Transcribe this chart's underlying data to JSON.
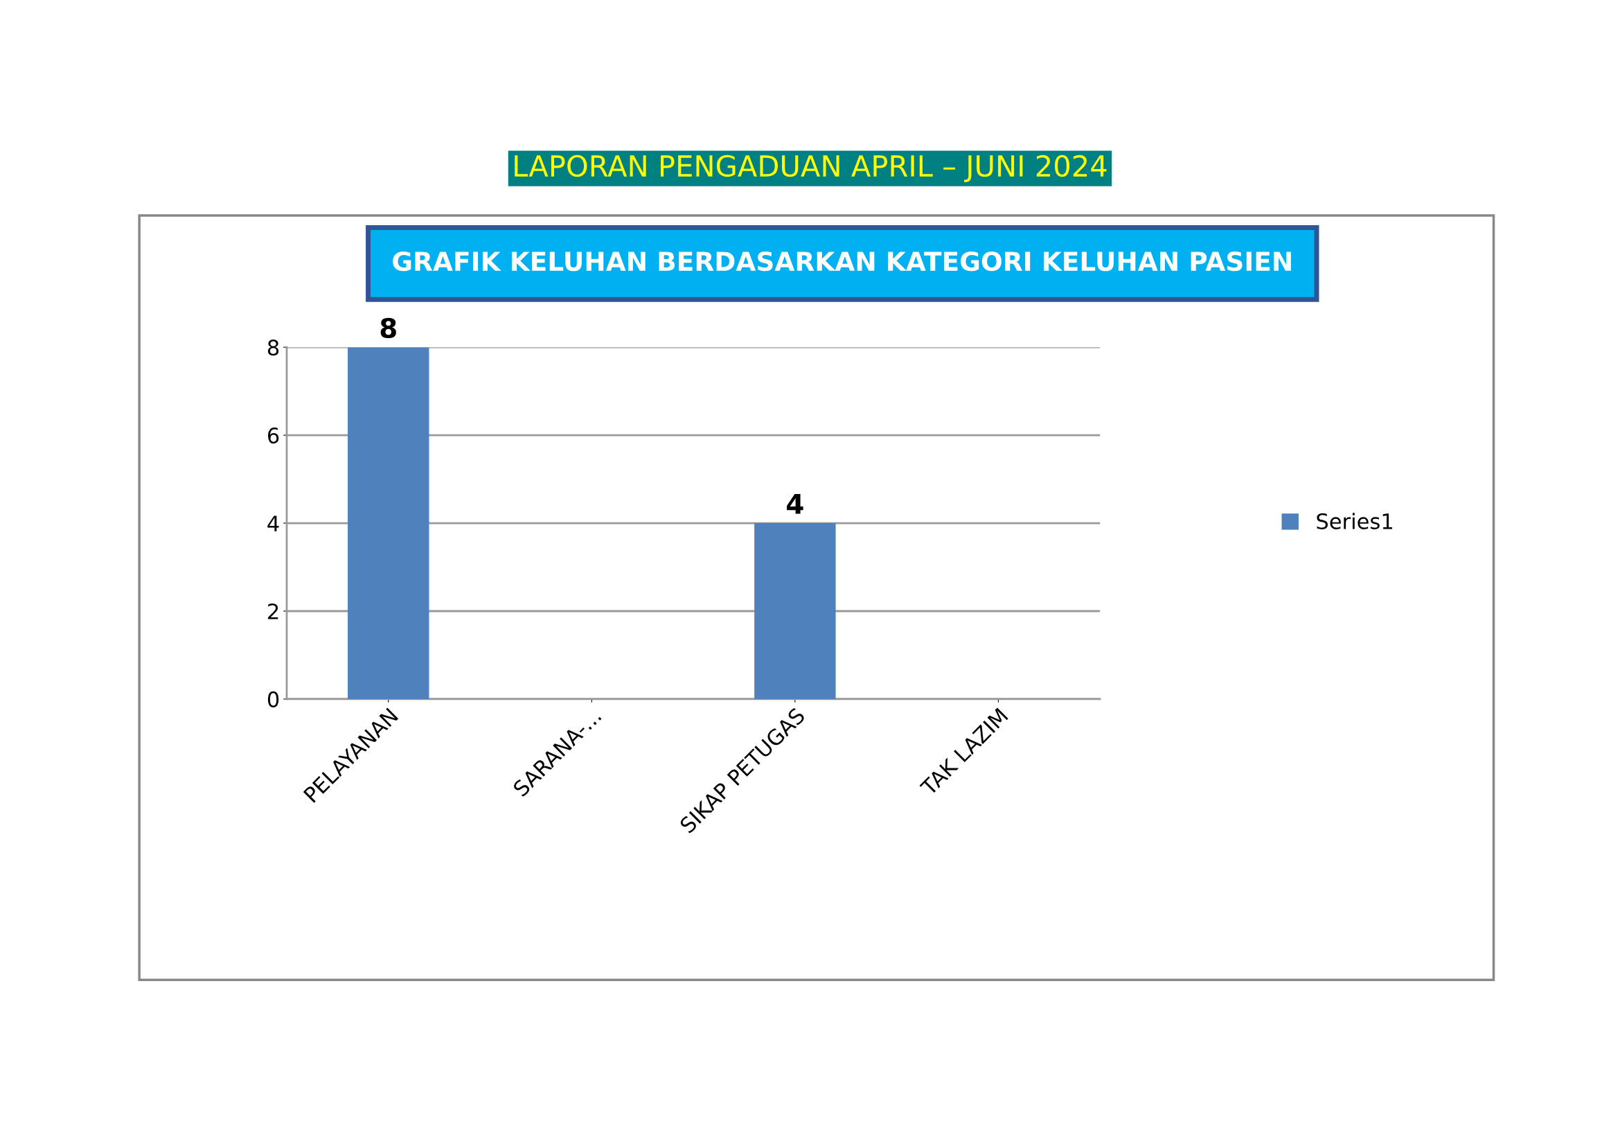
{
  "chart_data": {
    "type": "bar",
    "title": "LAPORAN PENGADUAN APRIL – JUNI 2024",
    "subtitle": "GRAFIK KELUHAN BERDASARKAN KATEGORI KELUHAN PASIEN",
    "categories": [
      "PELAYANAN",
      "SARANA-...",
      "SIKAP PETUGAS",
      "TAK LAZIM"
    ],
    "series": [
      {
        "name": "Series1",
        "color": "#4f81bd",
        "values": [
          8,
          0,
          4,
          0
        ],
        "value_labels": [
          "8",
          null,
          "4",
          null
        ]
      }
    ],
    "ylim": [
      0,
      8
    ],
    "yticks": [
      0,
      2,
      4,
      6,
      8
    ],
    "grid": "y",
    "legend": "right"
  }
}
